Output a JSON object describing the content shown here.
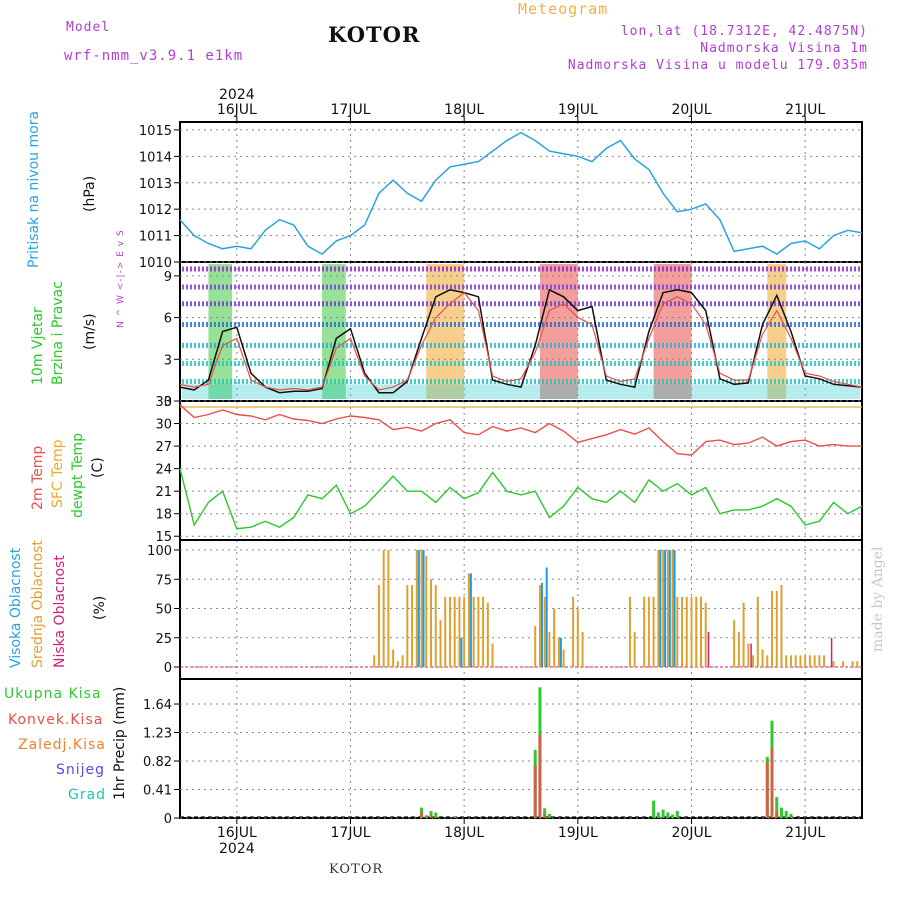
{
  "header": {
    "model_label": "Model",
    "model_name": "wrf-nmm_v3.9.1 e1km",
    "station": "KOTOR",
    "meteogram": "Meteogram",
    "lonlat": "lon,lat (18.7312E, 42.4875N)",
    "elevation": "Nadmorska Visina 1m",
    "model_elevation": "Nadmorska Visina u modelu 179.035m",
    "footer_station": "KOTOR",
    "watermark": "made by Angel"
  },
  "colors": {
    "pressure": "#2aa3e0",
    "temp2m": "#e8504a",
    "sfc": "#f0a830",
    "dewpt": "#2cc82c",
    "high": "#1e9be0",
    "mid": "#e0a030",
    "low": "#d0207a",
    "precip_total": "#30c830",
    "precip_conv": "#e8504a",
    "precip_frozen": "#f08030",
    "snow": "#5050e0",
    "hail": "#20c0c0",
    "wind_label": "#b040d0"
  },
  "axis": {
    "year": "2024",
    "days": [
      "16JUL",
      "17JUL",
      "18JUL",
      "19JUL",
      "20JUL",
      "21JUL"
    ],
    "day_start_hour": [
      12,
      36,
      60,
      84,
      108,
      132
    ]
  },
  "chart_data": [
    {
      "type": "line",
      "panel": "pressure",
      "ylabel_main": "Pritisak na nivou mora",
      "ylabel_unit": "(hPa)",
      "ylim": [
        1010,
        1015.3
      ],
      "yticks": [
        "1015",
        "1014",
        "1013",
        "1012",
        "1011",
        "1010"
      ],
      "x_hours": [
        0,
        3,
        6,
        9,
        12,
        15,
        18,
        21,
        24,
        27,
        30,
        33,
        36,
        39,
        42,
        45,
        48,
        51,
        54,
        57,
        60,
        63,
        66,
        69,
        72,
        75,
        78,
        81,
        84,
        87,
        90,
        93,
        96,
        99,
        102,
        105,
        108,
        111,
        114,
        117,
        120,
        123,
        126,
        129,
        132,
        135,
        138,
        141,
        144
      ],
      "series": [
        {
          "values": [
            1011.6,
            1011.0,
            1010.7,
            1010.5,
            1010.6,
            1010.5,
            1011.2,
            1011.6,
            1011.4,
            1010.6,
            1010.3,
            1010.8,
            1011.0,
            1011.4,
            1012.6,
            1013.1,
            1012.6,
            1012.3,
            1013.1,
            1013.6,
            1013.7,
            1013.8,
            1014.2,
            1014.6,
            1014.9,
            1014.6,
            1014.2,
            1014.1,
            1014.0,
            1013.8,
            1014.3,
            1014.6,
            1013.9,
            1013.5,
            1012.6,
            1011.9,
            1012.0,
            1012.2,
            1011.6,
            1010.4,
            1010.5,
            1010.6,
            1010.3,
            1010.7,
            1010.8,
            1010.5,
            1011.0,
            1011.2,
            1011.1
          ]
        }
      ]
    },
    {
      "type": "line",
      "panel": "wind",
      "ylabel_main": "10m Vjetar",
      "ylabel_sub": "Brzina i Pravac",
      "ylabel_unit": "(m/s)",
      "compass": "N ^ W <-|-> E v S",
      "ylim": [
        0,
        10
      ],
      "yticks": [
        "9",
        "6",
        "3",
        "0"
      ],
      "x_hours": [
        0,
        3,
        6,
        9,
        12,
        15,
        18,
        21,
        24,
        27,
        30,
        33,
        36,
        39,
        42,
        45,
        48,
        51,
        54,
        57,
        60,
        63,
        66,
        69,
        72,
        75,
        78,
        81,
        84,
        87,
        90,
        93,
        96,
        99,
        102,
        105,
        108,
        111,
        114,
        117,
        120,
        123,
        126,
        129,
        132,
        135,
        138,
        141,
        144
      ],
      "series": [
        {
          "values": [
            1.0,
            0.8,
            1.5,
            5.0,
            5.3,
            2.0,
            1.0,
            0.6,
            0.7,
            0.7,
            0.9,
            4.5,
            5.2,
            2.0,
            0.6,
            0.6,
            1.4,
            4.5,
            7.5,
            8.0,
            7.8,
            7.5,
            1.5,
            1.2,
            1.0,
            4.0,
            8.0,
            7.5,
            6.5,
            6.8,
            1.5,
            1.2,
            1.0,
            5.0,
            7.8,
            8.0,
            7.8,
            6.5,
            1.6,
            1.2,
            1.3,
            5.5,
            7.6,
            5.0,
            1.8,
            1.6,
            1.2,
            1.1,
            1.0
          ]
        },
        {
          "values": [
            1.2,
            1.0,
            1.2,
            4.0,
            4.5,
            1.5,
            1.0,
            0.8,
            0.9,
            0.8,
            1.0,
            3.8,
            4.5,
            1.8,
            0.8,
            1.0,
            1.5,
            4.0,
            6.0,
            7.0,
            7.8,
            6.5,
            1.8,
            1.4,
            1.6,
            3.5,
            6.5,
            7.0,
            6.0,
            5.5,
            1.8,
            1.4,
            1.6,
            4.5,
            7.0,
            7.5,
            7.0,
            5.5,
            2.0,
            1.5,
            1.5,
            4.8,
            6.5,
            4.5,
            2.0,
            1.8,
            1.4,
            1.2,
            1.0
          ]
        }
      ]
    },
    {
      "type": "line",
      "panel": "temperature",
      "ylabel_t2": "2m Temp",
      "ylabel_sfc": "SFC Temp",
      "ylabel_dew": "dewpt Temp",
      "ylabel_unit": "(C)",
      "ylim": [
        14.5,
        33
      ],
      "yticks": [
        "33",
        "30",
        "27",
        "24",
        "21",
        "18",
        "15"
      ],
      "x_hours": [
        0,
        3,
        6,
        9,
        12,
        15,
        18,
        21,
        24,
        27,
        30,
        33,
        36,
        39,
        42,
        45,
        48,
        51,
        54,
        57,
        60,
        63,
        66,
        69,
        72,
        75,
        78,
        81,
        84,
        87,
        90,
        93,
        96,
        99,
        102,
        105,
        108,
        111,
        114,
        117,
        120,
        123,
        126,
        129,
        132,
        135,
        138,
        141,
        144
      ],
      "series": [
        {
          "name": "2m Temp",
          "values": [
            32.5,
            30.8,
            31.2,
            31.8,
            31.2,
            31.0,
            30.5,
            31.2,
            30.6,
            30.4,
            30.0,
            30.6,
            31.0,
            30.8,
            30.5,
            29.2,
            29.5,
            29.0,
            30.0,
            30.5,
            28.8,
            28.5,
            29.6,
            29.0,
            29.4,
            28.8,
            30.0,
            29.0,
            27.5,
            28.0,
            28.5,
            29.2,
            28.6,
            29.4,
            27.6,
            26.0,
            25.8,
            27.6,
            27.8,
            27.2,
            27.4,
            28.2,
            27.0,
            27.6,
            27.8,
            27.0,
            27.2,
            27.0,
            27.0
          ]
        },
        {
          "name": "SFC Temp",
          "values": [
            32.2,
            32.2,
            32.2,
            32.2,
            32.2,
            32.2,
            32.2,
            32.2,
            32.2,
            32.2,
            32.2,
            32.2,
            32.2,
            32.2,
            32.2,
            32.2,
            32.2,
            32.2,
            32.2,
            32.2,
            32.2,
            32.2,
            32.2,
            32.2,
            32.2,
            32.2,
            32.2,
            32.2,
            32.2,
            32.2,
            32.2,
            32.2,
            32.2,
            32.2,
            32.2,
            32.2,
            32.2,
            32.2,
            32.2,
            32.2,
            32.2,
            32.2,
            32.2,
            32.2,
            32.2,
            32.2,
            32.2,
            32.2,
            32.2
          ]
        },
        {
          "name": "dewpt Temp",
          "values": [
            24.0,
            16.5,
            19.5,
            21.0,
            16.0,
            16.2,
            17.0,
            16.2,
            17.5,
            20.5,
            20.0,
            21.8,
            18.0,
            19.0,
            21.0,
            23.0,
            21.0,
            21.0,
            19.5,
            21.5,
            20.0,
            20.8,
            23.5,
            21.0,
            20.5,
            21.0,
            17.5,
            19.0,
            21.5,
            20.0,
            19.5,
            21.0,
            19.5,
            22.5,
            21.0,
            22.0,
            20.5,
            21.5,
            18.0,
            18.5,
            18.5,
            19.0,
            20.0,
            19.0,
            16.5,
            17.0,
            19.5,
            18.0,
            19.0
          ]
        }
      ]
    },
    {
      "type": "bar",
      "panel": "clouds",
      "ylabel_high": "Visoka Oblacnost",
      "ylabel_mid": "Srednja Oblacnost",
      "ylabel_low": "Niska Oblacnost",
      "ylabel_unit": "(%)",
      "ylim": [
        0,
        100
      ],
      "yticks": [
        "100",
        "75",
        "50",
        "25",
        "0"
      ],
      "bars": [
        {
          "h": 41,
          "mid": 10
        },
        {
          "h": 42,
          "mid": 70
        },
        {
          "h": 43,
          "mid": 100
        },
        {
          "h": 44,
          "mid": 100
        },
        {
          "h": 45,
          "mid": 15
        },
        {
          "h": 46,
          "mid": 5
        },
        {
          "h": 47,
          "mid": 10
        },
        {
          "h": 48,
          "mid": 70
        },
        {
          "h": 49,
          "mid": 70
        },
        {
          "h": 50,
          "mid": 100,
          "high": 100
        },
        {
          "h": 51,
          "mid": 100,
          "high": 100
        },
        {
          "h": 52,
          "mid": 95
        },
        {
          "h": 53,
          "mid": 75
        },
        {
          "h": 54,
          "mid": 70
        },
        {
          "h": 55,
          "mid": 40
        },
        {
          "h": 56,
          "mid": 60
        },
        {
          "h": 57,
          "mid": 60
        },
        {
          "h": 58,
          "mid": 60
        },
        {
          "h": 59,
          "mid": 60,
          "high": 25
        },
        {
          "h": 60,
          "mid": 60
        },
        {
          "h": 61,
          "mid": 80,
          "high": 80
        },
        {
          "h": 62,
          "mid": 60
        },
        {
          "h": 63,
          "mid": 60
        },
        {
          "h": 64,
          "mid": 60
        },
        {
          "h": 65,
          "mid": 55
        },
        {
          "h": 66,
          "mid": 20
        },
        {
          "h": 75,
          "mid": 35
        },
        {
          "h": 76,
          "mid": 70,
          "high": 72
        },
        {
          "h": 77,
          "mid": 60,
          "high": 85
        },
        {
          "h": 78,
          "mid": 30
        },
        {
          "h": 79,
          "mid": 50
        },
        {
          "h": 80,
          "mid": 25,
          "high": 25
        },
        {
          "h": 81,
          "mid": 15
        },
        {
          "h": 83,
          "mid": 60
        },
        {
          "h": 84,
          "mid": 50
        },
        {
          "h": 85,
          "mid": 30
        },
        {
          "h": 95,
          "mid": 60
        },
        {
          "h": 96,
          "mid": 30
        },
        {
          "h": 98,
          "mid": 60
        },
        {
          "h": 99,
          "mid": 60
        },
        {
          "h": 100,
          "mid": 60
        },
        {
          "h": 101,
          "mid": 100,
          "high": 100
        },
        {
          "h": 102,
          "mid": 100,
          "high": 100
        },
        {
          "h": 103,
          "mid": 100,
          "high": 100
        },
        {
          "h": 104,
          "mid": 100,
          "high": 100
        },
        {
          "h": 105,
          "mid": 60
        },
        {
          "h": 106,
          "mid": 60
        },
        {
          "h": 107,
          "mid": 60
        },
        {
          "h": 108,
          "mid": 60
        },
        {
          "h": 109,
          "mid": 60
        },
        {
          "h": 110,
          "mid": 60
        },
        {
          "h": 111,
          "mid": 55,
          "low": 30
        },
        {
          "h": 117,
          "mid": 40
        },
        {
          "h": 118,
          "mid": 30
        },
        {
          "h": 119,
          "mid": 55
        },
        {
          "h": 120,
          "mid": 20,
          "low": 20
        },
        {
          "h": 121,
          "mid": 10
        },
        {
          "h": 122,
          "mid": 60
        },
        {
          "h": 123,
          "mid": 15
        },
        {
          "h": 124,
          "mid": 10
        },
        {
          "h": 125,
          "mid": 65
        },
        {
          "h": 126,
          "mid": 65
        },
        {
          "h": 127,
          "mid": 70
        },
        {
          "h": 128,
          "mid": 10
        },
        {
          "h": 129,
          "mid": 10
        },
        {
          "h": 130,
          "mid": 10
        },
        {
          "h": 131,
          "mid": 10
        },
        {
          "h": 132,
          "mid": 10
        },
        {
          "h": 133,
          "mid": 10
        },
        {
          "h": 134,
          "mid": 10
        },
        {
          "h": 135,
          "mid": 10
        },
        {
          "h": 136,
          "mid": 10
        },
        {
          "h": 137,
          "low": 25
        },
        {
          "h": 138,
          "mid": 5
        },
        {
          "h": 140,
          "mid": 5
        },
        {
          "h": 142,
          "mid": 5
        },
        {
          "h": 143,
          "mid": 5
        }
      ]
    },
    {
      "type": "bar",
      "panel": "precipitation",
      "ylabel": "1hr Precip (mm)",
      "legend": [
        "Ukupna Kisa",
        "Konvek.Kisa",
        "Zaledj.Kisa",
        "Snijeg",
        "Grad"
      ],
      "ylim": [
        0,
        2.0
      ],
      "yticks": [
        "1.64",
        "1.23",
        "0.82",
        "0.41",
        "0"
      ],
      "bars": [
        {
          "h": 51,
          "total": 0.15,
          "conv": 0.08
        },
        {
          "h": 52,
          "total": 0.04
        },
        {
          "h": 53,
          "total": 0.1,
          "conv": 0.05
        },
        {
          "h": 54,
          "total": 0.08
        },
        {
          "h": 58,
          "total": 0.02
        },
        {
          "h": 75,
          "total": 0.98,
          "conv": 0.75
        },
        {
          "h": 76,
          "total": 1.88,
          "conv": 1.2
        },
        {
          "h": 77,
          "total": 0.14,
          "conv": 0.06
        },
        {
          "h": 78,
          "total": 0.06
        },
        {
          "h": 100,
          "total": 0.25
        },
        {
          "h": 101,
          "total": 0.08
        },
        {
          "h": 102,
          "total": 0.12
        },
        {
          "h": 103,
          "total": 0.08
        },
        {
          "h": 104,
          "total": 0.05
        },
        {
          "h": 105,
          "total": 0.1
        },
        {
          "h": 124,
          "total": 0.88,
          "conv": 0.8
        },
        {
          "h": 125,
          "total": 1.4,
          "conv": 1.0
        },
        {
          "h": 126,
          "total": 0.3,
          "conv": 0.1
        },
        {
          "h": 127,
          "total": 0.15
        },
        {
          "h": 128,
          "total": 0.1
        },
        {
          "h": 129,
          "total": 0.06
        }
      ]
    }
  ]
}
